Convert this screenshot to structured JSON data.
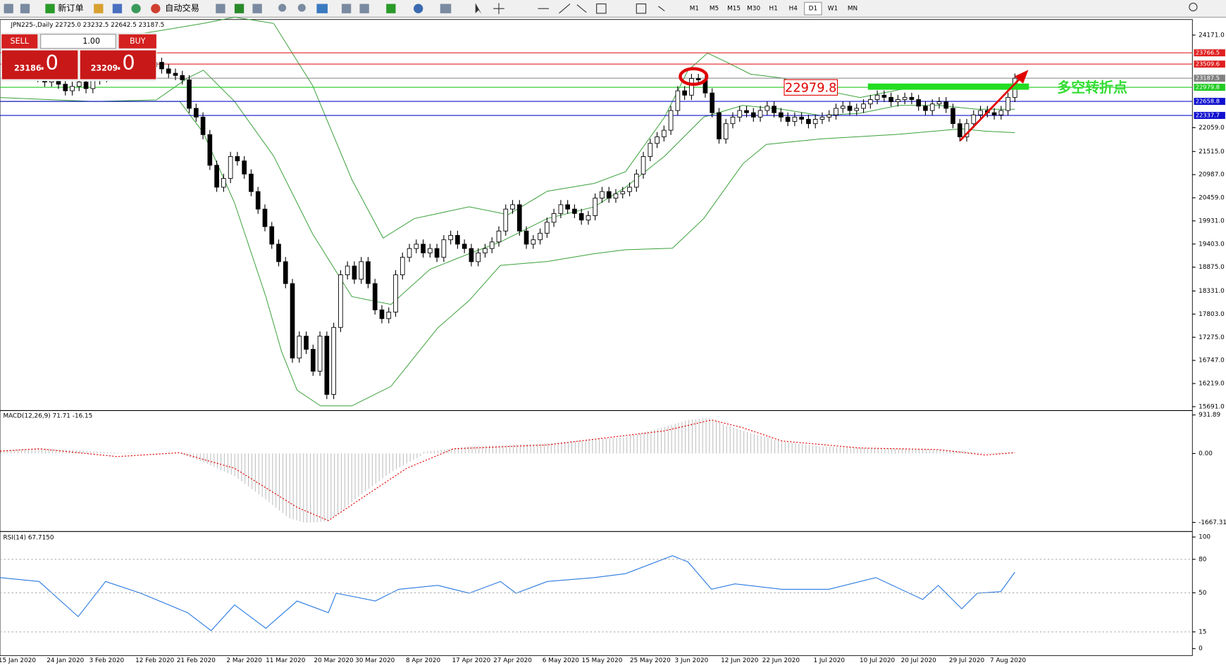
{
  "toolbar": {
    "buttons": [
      "新订单",
      "自动交易"
    ],
    "timeframes": [
      "M1",
      "M5",
      "M15",
      "M30",
      "H1",
      "H4",
      "D1",
      "W1",
      "MN"
    ],
    "active": "D1"
  },
  "trade_panel": {
    "sell": "SELL",
    "buy": "BUY",
    "lots": "1.00",
    "bid_main": "23186",
    "bid_frac": ".0",
    "ask_main": "23209",
    "ask_frac": ".0"
  },
  "chart_data": [
    {
      "type": "candlestick",
      "title": "JPN225-,Daily  22725.0 23232.5 22642.5 23187.5",
      "categories": [
        "15 Jan 2020",
        null,
        null,
        null,
        null,
        null,
        null,
        "24 Jan 2020",
        null,
        null,
        null,
        null,
        null,
        "3 Feb 2020",
        null,
        null,
        null,
        null,
        null,
        null,
        "12 Feb 2020",
        null,
        null,
        null,
        null,
        null,
        "21 Feb 2020",
        null,
        null,
        null,
        null,
        null,
        null,
        "2 Mar 2020",
        null,
        null,
        null,
        null,
        null,
        "11 Mar 2020",
        null,
        null,
        null,
        null,
        null,
        null,
        "20 Mar 2020",
        null,
        null,
        null,
        null,
        null,
        "30 Mar 2020",
        null,
        null,
        null,
        null,
        null,
        null,
        "8 Apr 2020",
        null,
        null,
        null,
        null,
        null,
        null,
        "17 Apr 2020",
        null,
        null,
        null,
        null,
        null,
        "27 Apr 2020",
        null,
        null,
        null,
        null,
        null,
        null,
        "6 May 2020",
        null,
        null,
        null,
        null,
        null,
        "15 May 2020",
        null,
        null,
        null,
        null,
        null,
        null,
        "25 May 2020",
        null,
        null,
        null,
        null,
        null,
        "3 Jun 2020",
        null,
        null,
        null,
        null,
        null,
        null,
        "12 Jun 2020",
        null,
        null,
        null,
        null,
        null,
        "22 Jun 2020",
        null,
        null,
        null,
        null,
        null,
        null,
        "1 Jul 2020",
        null,
        null,
        null,
        null,
        null,
        null,
        "10 Jul 2020",
        null,
        null,
        null,
        null,
        null,
        "20 Jul 2020",
        null,
        null,
        null,
        null,
        null,
        null,
        "29 Jul 2020",
        null,
        null,
        null,
        null,
        null,
        "7 Aug 2020",
        null
      ],
      "values": [
        23300,
        23350,
        23250,
        23200,
        23100,
        23150,
        23050,
        22900,
        23000,
        23100,
        22950,
        23150,
        23200,
        23300,
        23350,
        23400,
        23450,
        23400,
        23500,
        23450,
        23550,
        23400,
        23300,
        23250,
        23150,
        22500,
        22300,
        21900,
        21200,
        20700,
        20900,
        21400,
        21300,
        21000,
        20600,
        20200,
        19800,
        19400,
        19000,
        18500,
        16800,
        17300,
        17000,
        16500,
        17300,
        15970,
        17500,
        18700,
        18900,
        18600,
        19000,
        18500,
        17900,
        17700,
        17850,
        18700,
        19100,
        19300,
        19400,
        19200,
        19300,
        19100,
        19500,
        19600,
        19400,
        19300,
        19000,
        19200,
        19300,
        19450,
        19700,
        20200,
        20300,
        19700,
        19400,
        19500,
        19650,
        19900,
        20100,
        20300,
        20200,
        20100,
        19950,
        20050,
        20450,
        20600,
        20450,
        20550,
        20600,
        20700,
        21000,
        21400,
        21700,
        21850,
        22000,
        22450,
        22900,
        22800,
        23180,
        23150,
        22850,
        22400,
        21800,
        22150,
        22300,
        22450,
        22400,
        22300,
        22450,
        22550,
        22400,
        22300,
        22200,
        22300,
        22250,
        22150,
        22250,
        22300,
        22350,
        22500,
        22550,
        22450,
        22500,
        22600,
        22700,
        22800,
        22750,
        22650,
        22700,
        22750,
        22700,
        22550,
        22450,
        22600,
        22650,
        22500,
        22150,
        21850,
        22150,
        22350,
        22450,
        22400,
        22350,
        22450,
        22750,
        23187.5
      ],
      "ylim": [
        15620,
        24527
      ],
      "yticks": [
        {
          "value": 24171,
          "label": "24171.0"
        },
        {
          "value": 22059,
          "label": "22059.0"
        },
        {
          "value": 21515,
          "label": "21515.0"
        },
        {
          "value": 20987,
          "label": "20987.0"
        },
        {
          "value": 20459,
          "label": "20459.0"
        },
        {
          "value": 19931,
          "label": "19931.0"
        },
        {
          "value": 19403,
          "label": "19403.0"
        },
        {
          "value": 18875,
          "label": "18875.0"
        },
        {
          "value": 18331,
          "label": "18331.0"
        },
        {
          "value": 17803,
          "label": "17803.0"
        },
        {
          "value": 17275,
          "label": "17275.0"
        },
        {
          "value": 16747,
          "label": "16747.0"
        },
        {
          "value": 16219,
          "label": "16219.0"
        },
        {
          "value": 15691,
          "label": "15691.0"
        }
      ],
      "levels": [
        {
          "value": 23766.5,
          "color": "#e02020"
        },
        {
          "value": 23509.6,
          "color": "#e02020"
        },
        {
          "value": 23187.5,
          "color": "#808080"
        },
        {
          "value": 22979.8,
          "color": "#22cc22"
        },
        {
          "value": 22658.8,
          "color": "#1010d0"
        },
        {
          "value": 22337.7,
          "color": "#1010d0"
        }
      ],
      "annotation": "多空转折点"
    },
    {
      "type": "macd",
      "title": "MACD(12,26,9) 71.71 -16.15",
      "ylim": [
        -1868,
        1019
      ],
      "yticks": [
        931.89,
        {
          "value": 0,
          "label": "0.00"
        },
        -1667.31
      ]
    },
    {
      "type": "rsi",
      "title": "RSI(14) 67.7150",
      "ylim": [
        0,
        100
      ],
      "yticks": [
        100,
        80,
        50,
        15,
        0
      ]
    }
  ]
}
